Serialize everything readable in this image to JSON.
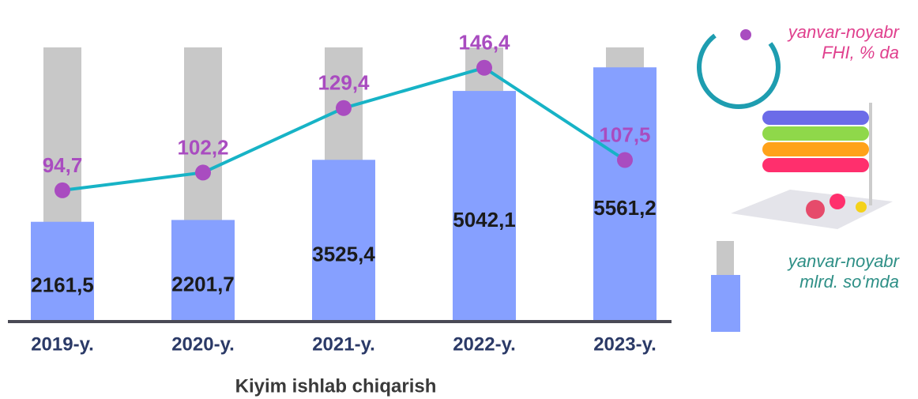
{
  "chart_data": {
    "type": "bar",
    "title": "Kiyim ishlab chiqarish",
    "categories": [
      "2019-y.",
      "2020-y.",
      "2021-y.",
      "2022-y.",
      "2023-y."
    ],
    "ylim": [
      0,
      6000
    ],
    "y2lim": [
      40,
      155
    ],
    "series": [
      {
        "name": "yanvar-noyabr mlrd. so‘mda",
        "type": "bar",
        "color": "#86a0ff",
        "values": [
          2161.5,
          2201.7,
          3525.4,
          5042.1,
          5561.2
        ],
        "value_labels": [
          "2161,5",
          "2201,7",
          "3525,4",
          "5042,1",
          "5561,2"
        ]
      },
      {
        "name": "yanvar-noyabr FHI, % da",
        "type": "line",
        "axis": "y2",
        "color": "#17b3c6",
        "marker_color": "#a94cc0",
        "values": [
          94.7,
          102.2,
          129.4,
          146.4,
          107.5
        ],
        "value_labels": [
          "94,7",
          "102,2",
          "129,4",
          "146,4",
          "107,5"
        ]
      }
    ]
  }
}
